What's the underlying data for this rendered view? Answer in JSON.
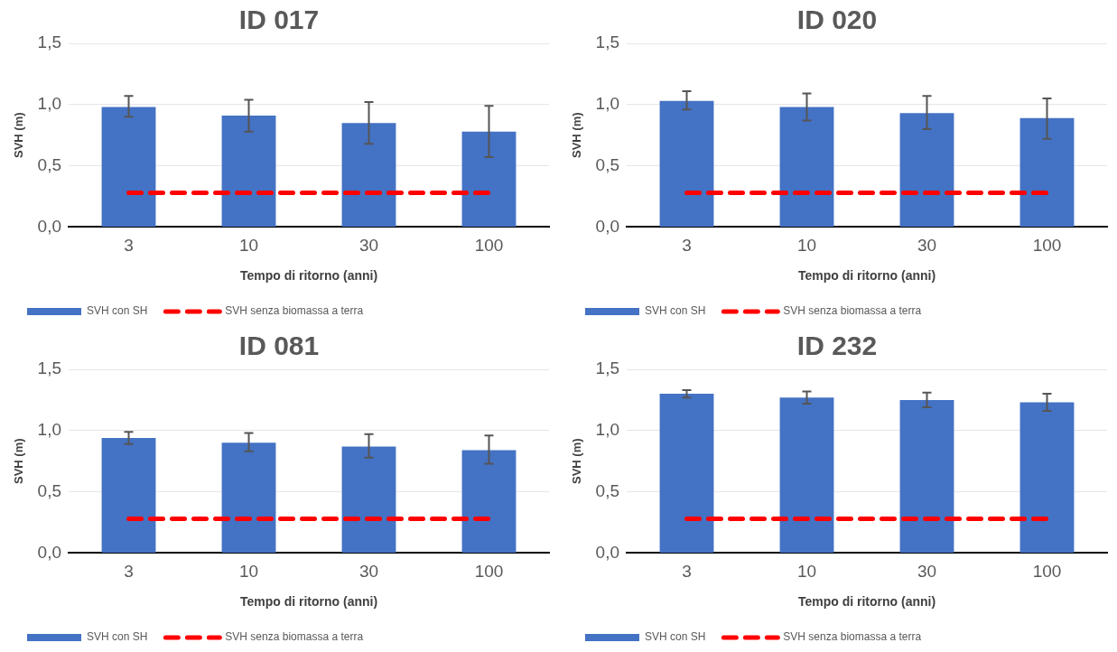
{
  "chart_data": [
    {
      "type": "bar",
      "title": "ID 017",
      "xlabel": "Tempo di ritorno (anni)",
      "ylabel": "SVH (m)",
      "categories": [
        "3",
        "10",
        "30",
        "100"
      ],
      "ylim": [
        0,
        1.5
      ],
      "yticks": [
        {
          "value": 0,
          "label": "0,0"
        },
        {
          "value": 0.5,
          "label": "0,5"
        },
        {
          "value": 1,
          "label": "1,0"
        },
        {
          "value": 1.5,
          "label": "1,5"
        }
      ],
      "grid": "y",
      "legend": "bottom",
      "series": [
        {
          "name": "SVH con SH",
          "color": "#4472c4",
          "values": [
            0.98,
            0.91,
            0.85,
            0.78
          ],
          "errors": [
            [
              0.9,
              1.07
            ],
            [
              0.78,
              1.04
            ],
            [
              0.68,
              1.02
            ],
            [
              0.57,
              0.99
            ]
          ]
        },
        {
          "name": "SVH senza biomassa a terra",
          "type": "line",
          "color": "#ff0000",
          "line_style": "dashed",
          "marker": "none",
          "values": [
            0.28,
            0.28,
            0.28,
            0.28
          ]
        }
      ]
    },
    {
      "type": "bar",
      "title": "ID 020",
      "xlabel": "Tempo di ritorno (anni)",
      "ylabel": "SVH (m)",
      "categories": [
        "3",
        "10",
        "30",
        "100"
      ],
      "ylim": [
        0,
        1.5
      ],
      "yticks": [
        {
          "value": 0,
          "label": "0,0"
        },
        {
          "value": 0.5,
          "label": "0,5"
        },
        {
          "value": 1,
          "label": "1,0"
        },
        {
          "value": 1.5,
          "label": "1,5"
        }
      ],
      "grid": "y",
      "legend": "bottom",
      "series": [
        {
          "name": "SVH con SH",
          "color": "#4472c4",
          "values": [
            1.03,
            0.98,
            0.93,
            0.89
          ],
          "errors": [
            [
              0.96,
              1.11
            ],
            [
              0.87,
              1.09
            ],
            [
              0.8,
              1.07
            ],
            [
              0.72,
              1.05
            ]
          ]
        },
        {
          "name": "SVH senza biomassa a terra",
          "type": "line",
          "color": "#ff0000",
          "line_style": "dashed",
          "marker": "none",
          "values": [
            0.28,
            0.28,
            0.28,
            0.28
          ]
        }
      ]
    },
    {
      "type": "bar",
      "title": "ID 081",
      "xlabel": "Tempo di ritorno (anni)",
      "ylabel": "SVH (m)",
      "categories": [
        "3",
        "10",
        "30",
        "100"
      ],
      "ylim": [
        0,
        1.5
      ],
      "yticks": [
        {
          "value": 0,
          "label": "0,0"
        },
        {
          "value": 0.5,
          "label": "0,5"
        },
        {
          "value": 1,
          "label": "1,0"
        },
        {
          "value": 1.5,
          "label": "1,5"
        }
      ],
      "grid": "y",
      "legend": "bottom",
      "series": [
        {
          "name": "SVH con SH",
          "color": "#4472c4",
          "values": [
            0.94,
            0.9,
            0.87,
            0.84
          ],
          "errors": [
            [
              0.89,
              0.99
            ],
            [
              0.83,
              0.98
            ],
            [
              0.78,
              0.97
            ],
            [
              0.73,
              0.96
            ]
          ]
        },
        {
          "name": "SVH senza biomassa a terra",
          "type": "line",
          "color": "#ff0000",
          "line_style": "dashed",
          "marker": "none",
          "values": [
            0.28,
            0.28,
            0.28,
            0.28
          ]
        }
      ]
    },
    {
      "type": "bar",
      "title": "ID 232",
      "xlabel": "Tempo di ritorno (anni)",
      "ylabel": "SVH (m)",
      "categories": [
        "3",
        "10",
        "30",
        "100"
      ],
      "ylim": [
        0,
        1.5
      ],
      "yticks": [
        {
          "value": 0,
          "label": "0,0"
        },
        {
          "value": 0.5,
          "label": "0,5"
        },
        {
          "value": 1,
          "label": "1,0"
        },
        {
          "value": 1.5,
          "label": "1,5"
        }
      ],
      "grid": "y",
      "legend": "bottom",
      "series": [
        {
          "name": "SVH con SH",
          "color": "#4472c4",
          "values": [
            1.3,
            1.27,
            1.25,
            1.23
          ],
          "errors": [
            [
              1.27,
              1.33
            ],
            [
              1.22,
              1.32
            ],
            [
              1.19,
              1.31
            ],
            [
              1.16,
              1.3
            ]
          ]
        },
        {
          "name": "SVH senza biomassa a terra",
          "type": "line",
          "color": "#ff0000",
          "line_style": "dashed",
          "marker": "none",
          "values": [
            0.28,
            0.28,
            0.28,
            0.28
          ]
        }
      ]
    }
  ]
}
